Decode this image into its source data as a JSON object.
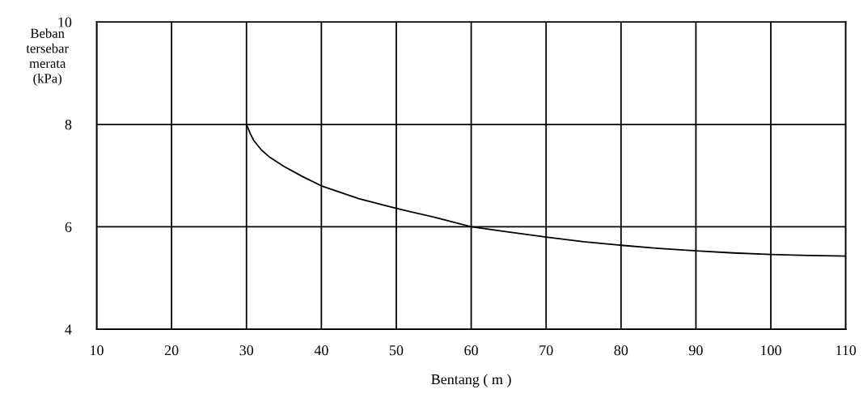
{
  "chart_data": {
    "type": "line",
    "xlabel": "Bentang ( m )",
    "ylabel": "Beban\ntersebar\nmerata\n(kPa)",
    "x": [
      30,
      30.5,
      31,
      32,
      33,
      35,
      37.5,
      40,
      45,
      50,
      55,
      60,
      65,
      70,
      75,
      80,
      85,
      90,
      95,
      100,
      105,
      110
    ],
    "series": [
      {
        "color": "#000000",
        "values": [
          8.0,
          7.82,
          7.68,
          7.5,
          7.37,
          7.18,
          6.98,
          6.8,
          6.55,
          6.36,
          6.19,
          6.0,
          5.9,
          5.8,
          5.71,
          5.64,
          5.58,
          5.53,
          5.49,
          5.46,
          5.44,
          5.43
        ]
      }
    ],
    "xlim": [
      10,
      110
    ],
    "xticks": [
      10,
      20,
      30,
      40,
      50,
      60,
      70,
      80,
      90,
      100,
      110
    ],
    "ylim": [
      4,
      10
    ],
    "yticks": [
      4,
      6,
      8,
      10
    ],
    "grid": true,
    "marker": "none",
    "line_style": "solid"
  }
}
